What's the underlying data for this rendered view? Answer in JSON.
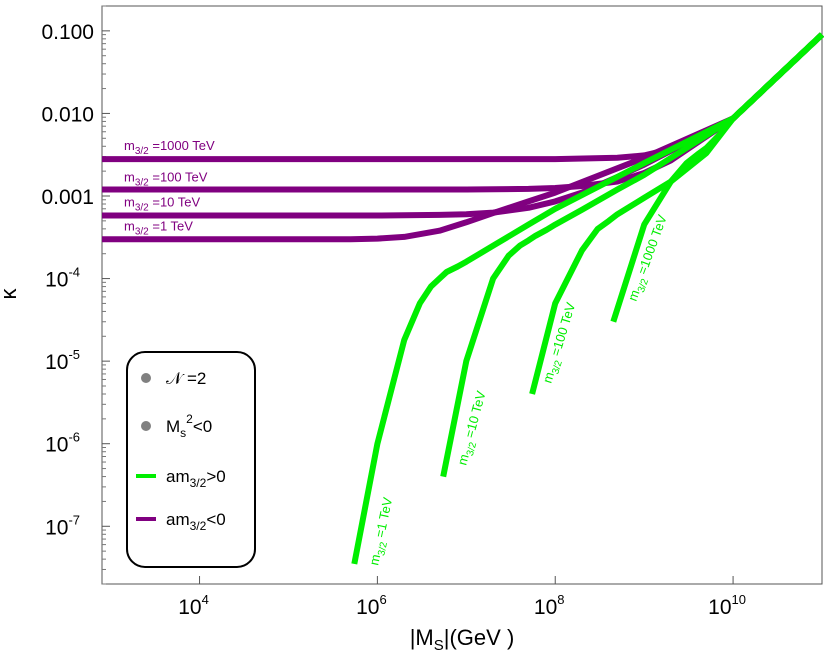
{
  "chart_data": {
    "type": "line",
    "xlabel": "|M",
    "xlabel_sub": "S",
    "xlabel_rest": "|(GeV )",
    "ylabel": "κ",
    "xscale": "log",
    "yscale": "log",
    "xlim": [
      800.0,
      100000000000.0
    ],
    "ylim": [
      2e-08,
      0.2
    ],
    "grid": false,
    "legend_placement": "bottom-left",
    "x_ticks": [
      {
        "base": "10",
        "exp": "4",
        "value": 10000.0
      },
      {
        "base": "10",
        "exp": "6",
        "value": 1000000.0
      },
      {
        "base": "10",
        "exp": "8",
        "value": 100000000.0
      },
      {
        "base": "10",
        "exp": "10",
        "value": 10000000000.0
      }
    ],
    "y_ticks": [
      {
        "base": "0.100",
        "exp": "",
        "value": 0.1
      },
      {
        "base": "0.010",
        "exp": "",
        "value": 0.01
      },
      {
        "base": "0.001",
        "exp": "",
        "value": 0.001
      },
      {
        "base": "10",
        "exp": "-4",
        "value": 0.0001
      },
      {
        "base": "10",
        "exp": "-5",
        "value": 1e-05
      },
      {
        "base": "10",
        "exp": "-6",
        "value": 1e-06
      },
      {
        "base": "10",
        "exp": "-7",
        "value": 1e-07
      }
    ],
    "colors": {
      "positive": "#00ee00",
      "negative": "#800080",
      "legend_dot": "#808080"
    },
    "series": [
      {
        "group": "negative",
        "label": {
          "pre": "m",
          "sub": "3/2",
          "post": " =1 TeV"
        },
        "x": [
          800,
          10000.0,
          100000.0,
          500000.0,
          1000000.0,
          2000000.0,
          5000000.0,
          10000000.0,
          20000000.0,
          50000000.0,
          100000000.0,
          1000000000.0,
          10000000000.0,
          100000000000.0
        ],
        "y": [
          0.0003,
          0.0003,
          0.0003,
          0.0003,
          0.000305,
          0.00032,
          0.00038,
          0.00048,
          0.00062,
          0.00086,
          0.0011,
          0.0029,
          0.0087,
          0.09
        ]
      },
      {
        "group": "negative",
        "label": {
          "pre": "m",
          "sub": "3/2",
          "post": " =10 TeV"
        },
        "x": [
          800,
          10000.0,
          100000.0,
          1000000.0,
          5000000.0,
          10000000.0,
          20000000.0,
          50000000.0,
          100000000.0,
          200000000.0,
          500000000.0,
          1000000000.0,
          10000000000.0,
          100000000000.0
        ],
        "y": [
          0.00058,
          0.00058,
          0.00058,
          0.00058,
          0.00059,
          0.0006,
          0.00063,
          0.00072,
          0.00086,
          0.0011,
          0.0017,
          0.0024,
          0.0087,
          0.09
        ]
      },
      {
        "group": "negative",
        "label": {
          "pre": "m",
          "sub": "3/2",
          "post": " =100 TeV"
        },
        "x": [
          800,
          10000.0,
          100000.0,
          1000000.0,
          10000000.0,
          50000000.0,
          100000000.0,
          200000000.0,
          500000000.0,
          1000000000.0,
          2000000000.0,
          10000000000.0,
          100000000000.0
        ],
        "y": [
          0.0012,
          0.0012,
          0.0012,
          0.0012,
          0.0012,
          0.00122,
          0.00125,
          0.00132,
          0.0015,
          0.0019,
          0.0027,
          0.0087,
          0.09
        ]
      },
      {
        "group": "negative",
        "label": {
          "pre": "m",
          "sub": "3/2",
          "post": " =1000 TeV"
        },
        "x": [
          800,
          10000.0,
          100000.0,
          1000000.0,
          10000000.0,
          100000000.0,
          500000000.0,
          1000000000.0,
          2000000000.0,
          4000000000.0,
          10000000000.0,
          100000000000.0
        ],
        "y": [
          0.0028,
          0.0028,
          0.0028,
          0.0028,
          0.0028,
          0.0028,
          0.0029,
          0.0031,
          0.0037,
          0.0048,
          0.0087,
          0.09
        ]
      },
      {
        "group": "positive",
        "label": {
          "pre": "m",
          "sub": "3/2",
          "post": " =1 TeV"
        },
        "x": [
          550000.0,
          1000000.0,
          2000000.0,
          3000000.0,
          4000000.0,
          5000000.0,
          6000000.0,
          8000000.0,
          10000000.0,
          20000000.0,
          50000000.0,
          100000000.0,
          1000000000.0,
          10000000000.0,
          100000000000.0
        ],
        "y": [
          3.5e-08,
          1e-06,
          1.8e-05,
          5e-05,
          8e-05,
          0.0001,
          0.00012,
          0.00014,
          0.00016,
          0.00025,
          0.00045,
          0.0007,
          0.0025,
          0.0087,
          0.09
        ]
      },
      {
        "group": "positive",
        "label": {
          "pre": "m",
          "sub": "3/2",
          "post": " =10 TeV"
        },
        "x": [
          5500000.0,
          10000000.0,
          20000000.0,
          30000000.0,
          40000000.0,
          50000000.0,
          60000000.0,
          80000000.0,
          100000000.0,
          200000000.0,
          500000000.0,
          1000000000.0,
          10000000000.0,
          100000000000.0
        ],
        "y": [
          4e-07,
          1e-05,
          0.0001,
          0.00019,
          0.00025,
          0.00029,
          0.00033,
          0.00039,
          0.00045,
          0.00068,
          0.0012,
          0.0018,
          0.0087,
          0.09
        ]
      },
      {
        "group": "positive",
        "label": {
          "pre": "m",
          "sub": "3/2",
          "post": " =100 TeV"
        },
        "x": [
          55000000.0,
          100000000.0,
          200000000.0,
          300000000.0,
          400000000.0,
          500000000.0,
          700000000.0,
          1000000000.0,
          2000000000.0,
          5000000000.0,
          10000000000.0,
          100000000000.0
        ],
        "y": [
          4e-06,
          5e-05,
          0.00022,
          0.0004,
          0.0005,
          0.0006,
          0.00075,
          0.00095,
          0.0015,
          0.0033,
          0.0087,
          0.09
        ]
      },
      {
        "group": "positive",
        "label": {
          "pre": "m",
          "sub": "3/2",
          "post": " =1000 TeV"
        },
        "x": [
          450000000.0,
          1000000000.0,
          2000000000.0,
          3000000000.0,
          4000000000.0,
          5000000000.0,
          7000000000.0,
          10000000000.0,
          100000000000.0
        ],
        "y": [
          3e-05,
          0.00045,
          0.0015,
          0.0025,
          0.0032,
          0.0038,
          0.0055,
          0.0087,
          0.09
        ]
      }
    ],
    "legend": [
      {
        "kind": "dot",
        "pre": "𝒩 =2",
        "sup": "",
        "sub": "",
        "post": ""
      },
      {
        "kind": "dot",
        "pre": "M",
        "sub": "s",
        "sup": "2",
        "post": "<0"
      },
      {
        "kind": "line",
        "group": "positive",
        "pre": "am",
        "sub": "3/2",
        "sup": "",
        "post": ">0"
      },
      {
        "kind": "line",
        "group": "negative",
        "pre": "am",
        "sub": "3/2",
        "sup": "",
        "post": "<0"
      }
    ]
  }
}
